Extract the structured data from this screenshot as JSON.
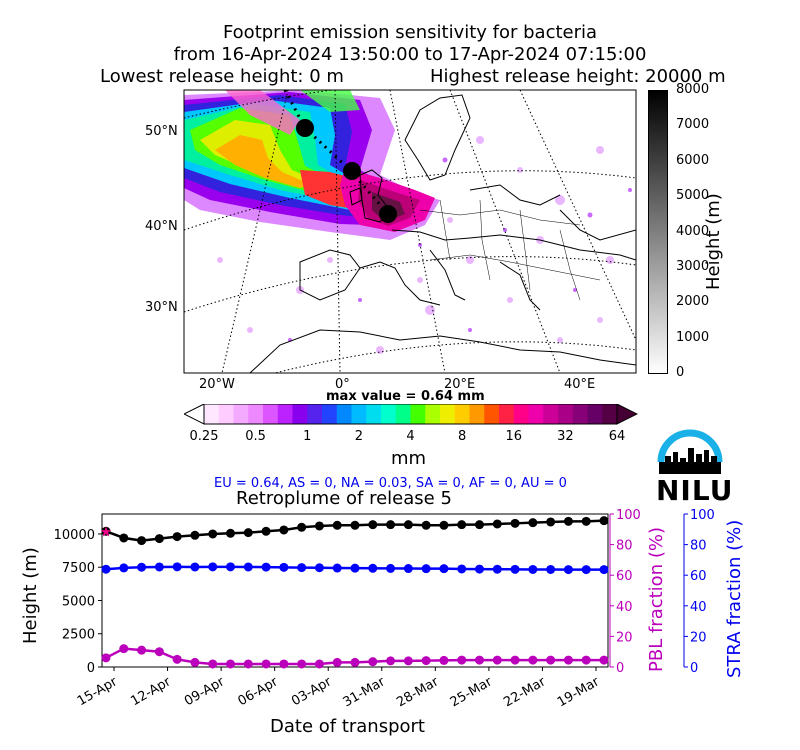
{
  "header": {
    "title_line1": "Footprint emission sensitivity for bacteria",
    "title_line2": "from 16-Apr-2024 13:50:00 to 17-Apr-2024 07:15:00",
    "title_lowest": "Lowest release height: 0 m",
    "title_highest": "Highest release height: 20000 m"
  },
  "map": {
    "lat_labels": [
      "50°N",
      "40°N",
      "30°N"
    ],
    "lon_labels": [
      "20°W",
      "0°",
      "20°E",
      "40°E"
    ],
    "max_value": "max value = 0.64 mm"
  },
  "emission_colorbar": {
    "unit": "mm",
    "ticks": [
      "0.25",
      "0.5",
      "1",
      "2",
      "4",
      "8",
      "16",
      "32",
      "64"
    ]
  },
  "height_colorbar": {
    "label": "Height (m)",
    "ticks": [
      "8000",
      "7000",
      "6000",
      "5000",
      "4000",
      "3000",
      "2000",
      "1000",
      "0"
    ]
  },
  "region_fractions": "EU = 0.64,  AS = 0,  NA = 0.03,  SA = 0,  AF = 0,  AU = 0",
  "logo": {
    "text": "NILU"
  },
  "chart_data": {
    "type": "line",
    "title": "Retroplume of release 5",
    "xlabel": "Date of transport",
    "ylabel": "Height (m)",
    "ylabel_right1": "PBL fraction (%)",
    "ylabel_right2": "STRA fraction (%)",
    "x_ticks": [
      "15-Apr",
      "12-Apr",
      "09-Apr",
      "06-Apr",
      "03-Apr",
      "31-Mar",
      "28-Mar",
      "25-Mar",
      "22-Mar",
      "19-Mar"
    ],
    "yticks_left": [
      "0",
      "2500",
      "5000",
      "7500",
      "10000"
    ],
    "yticks_right": [
      "0",
      "20",
      "40",
      "60",
      "80",
      "100"
    ],
    "ylim_left": [
      0,
      11500
    ],
    "ylim_right": [
      0,
      100
    ],
    "series": [
      {
        "axis": "left",
        "color": "#000000",
        "values": [
          10200,
          9700,
          9500,
          9650,
          9800,
          9900,
          10000,
          10050,
          10100,
          10200,
          10300,
          10500,
          10600,
          10650,
          10650,
          10700,
          10700,
          10700,
          10650,
          10650,
          10700,
          10700,
          10750,
          10800,
          10850,
          10900,
          10950,
          10950,
          11000
        ]
      },
      {
        "axis": "left",
        "color": "#0000ff",
        "values": [
          7350,
          7450,
          7500,
          7520,
          7530,
          7520,
          7530,
          7530,
          7520,
          7510,
          7490,
          7470,
          7460,
          7440,
          7430,
          7420,
          7410,
          7400,
          7390,
          7390,
          7370,
          7360,
          7350,
          7340,
          7330,
          7330,
          7320,
          7320,
          7320
        ]
      },
      {
        "axis": "right",
        "color": "#bb00bb",
        "values": [
          6,
          12,
          11,
          10,
          5,
          3,
          2,
          2,
          2,
          2,
          2,
          2,
          2,
          3,
          3,
          3.5,
          4,
          4,
          4.2,
          4.3,
          4.5,
          4.5,
          4.5,
          4.5,
          4.5,
          4.5,
          4.5,
          4.5,
          4.5
        ]
      }
    ]
  }
}
